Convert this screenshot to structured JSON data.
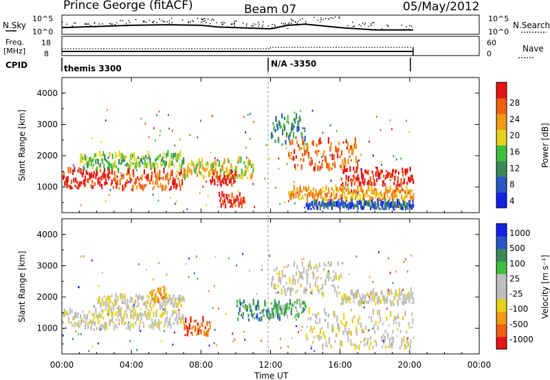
{
  "header": {
    "station": "Prince George (fitACF)",
    "beam": "Beam 07",
    "date": "05/May/2012"
  },
  "colors": {
    "power_scale": [
      "#1420e6",
      "#2a56c8",
      "#3a8a5a",
      "#3fbf3f",
      "#e6d21a",
      "#f09a14",
      "#f06010",
      "#e61414"
    ],
    "velocity_scale": [
      "#e61414",
      "#f06010",
      "#f09a14",
      "#e6d21a",
      "#bcbcbc",
      "#c0c0c0",
      "#3fbf3f",
      "#3a8a5a",
      "#2a56c8",
      "#1420e6"
    ],
    "ground_scatter": "#b4b4b4"
  },
  "chart_data": [
    {
      "type": "line",
      "name": "noise-panel",
      "left_label": "N.Sky",
      "right_label": "N.Search",
      "left_ticks": [
        "10^5",
        "10^0"
      ],
      "right_ticks": [
        "10^5",
        "10^0"
      ],
      "x": [
        0,
        2,
        4,
        6,
        8,
        9,
        10,
        12,
        13,
        14,
        16,
        18,
        20.2
      ],
      "values": [
        0.4,
        0.5,
        0.6,
        0.65,
        0.6,
        0.45,
        0.4,
        0.3,
        0.6,
        0.7,
        0.4,
        0.2,
        0.2
      ]
    },
    {
      "type": "line",
      "name": "freq-panel",
      "left_label": "Freq.\n[MHz]",
      "right_label": "Nave",
      "left_ticks": [
        "18",
        "8"
      ],
      "right_ticks": [
        "60",
        "0"
      ],
      "freq_change_hour": 12.0
    },
    {
      "type": "table",
      "name": "cpid-panel",
      "left_label": "CPID",
      "segments": [
        {
          "start": 0,
          "end": 12,
          "label": "themis 3300"
        },
        {
          "start": 12,
          "end": 20.2,
          "label": "N/A -3350"
        }
      ]
    },
    {
      "type": "heatmap",
      "name": "power-panel",
      "ylabel": "Slant Range [km]",
      "y_ticks": [
        "1000",
        "2000",
        "3000",
        "4000"
      ],
      "ylim": [
        180,
        4500
      ],
      "xlim": [
        0,
        24
      ],
      "colorbar_label": "Power [dB]",
      "colorbar_ticks": [
        "28",
        "24",
        "20",
        "16",
        "12",
        "8",
        "4"
      ],
      "bands": [
        {
          "x0": 0,
          "x1": 3,
          "y0": 900,
          "y1": 1500,
          "level": 7
        },
        {
          "x0": 3,
          "x1": 7,
          "y0": 850,
          "y1": 1450,
          "level": 6
        },
        {
          "x0": 1,
          "x1": 7,
          "y0": 1500,
          "y1": 2000,
          "level": 3
        },
        {
          "x0": 7,
          "x1": 11,
          "y0": 1200,
          "y1": 1800,
          "level": 4
        },
        {
          "x0": 8.5,
          "x1": 10,
          "y0": 1000,
          "y1": 1400,
          "level": 7
        },
        {
          "x0": 12,
          "x1": 14,
          "y0": 2200,
          "y1": 3200,
          "level": 2
        },
        {
          "x0": 13,
          "x1": 17,
          "y0": 1500,
          "y1": 2400,
          "level": 6
        },
        {
          "x0": 16,
          "x1": 20.2,
          "y0": 1000,
          "y1": 1500,
          "level": 7
        },
        {
          "x0": 13,
          "x1": 20.2,
          "y0": 500,
          "y1": 900,
          "level": 5
        },
        {
          "x0": 14,
          "x1": 20.2,
          "y0": 250,
          "y1": 450,
          "level": 1
        },
        {
          "x0": 9,
          "x1": 10.5,
          "y0": 300,
          "y1": 700,
          "level": 7
        }
      ]
    },
    {
      "type": "heatmap",
      "name": "velocity-panel",
      "ylabel": "Slant Range [km]",
      "y_ticks": [
        "1000",
        "2000",
        "3000",
        "4000"
      ],
      "ylim": [
        180,
        4500
      ],
      "xlim": [
        0,
        24
      ],
      "x_ticks": [
        "00:00",
        "04:00",
        "08:00",
        "12:00",
        "16:00",
        "20:00",
        "00:00"
      ],
      "xlabel": "Time UT",
      "colorbar_label": "Velocity [m s⁻¹]",
      "colorbar_ticks": [
        "1000",
        "500",
        "100",
        "25",
        "-25",
        "-100",
        "-500",
        "-1000"
      ],
      "bands": [
        {
          "x0": 0,
          "x1": 7,
          "y0": 900,
          "y1": 1500,
          "level": 4
        },
        {
          "x0": 2,
          "x1": 7,
          "y0": 1500,
          "y1": 2000,
          "level": 4
        },
        {
          "x0": 5,
          "x1": 6,
          "y0": 1800,
          "y1": 2200,
          "level": 2
        },
        {
          "x0": 7,
          "x1": 8.5,
          "y0": 700,
          "y1": 1200,
          "level": 1
        },
        {
          "x0": 10,
          "x1": 12.5,
          "y0": 1200,
          "y1": 1800,
          "level": 7
        },
        {
          "x0": 12,
          "x1": 14,
          "y0": 1300,
          "y1": 1800,
          "level": 6
        },
        {
          "x0": 12,
          "x1": 16,
          "y0": 2000,
          "y1": 3000,
          "level": 4
        },
        {
          "x0": 14,
          "x1": 20.2,
          "y0": 300,
          "y1": 1500,
          "level": 4
        },
        {
          "x0": 16,
          "x1": 20.2,
          "y0": 1700,
          "y1": 2100,
          "level": 4
        }
      ]
    }
  ]
}
